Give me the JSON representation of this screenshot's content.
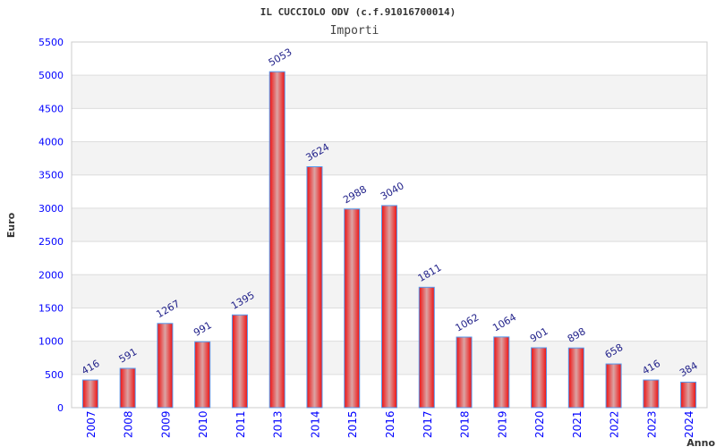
{
  "chart_data": {
    "type": "bar",
    "title": "IL CUCCIOLO ODV (c.f.91016700014)",
    "subtitle": "Importi",
    "xlabel": "Anno",
    "ylabel": "Euro",
    "ylim": [
      0,
      5500
    ],
    "yticks": [
      0,
      500,
      1000,
      1500,
      2000,
      2500,
      3000,
      3500,
      4000,
      4500,
      5000,
      5500
    ],
    "categories": [
      "2007",
      "2008",
      "2009",
      "2010",
      "2011",
      "2013",
      "2014",
      "2015",
      "2016",
      "2017",
      "2018",
      "2019",
      "2020",
      "2021",
      "2022",
      "2023",
      "2024"
    ],
    "values": [
      416,
      591,
      1267,
      991,
      1395,
      5053,
      3624,
      2988,
      3040,
      1811,
      1062,
      1064,
      901,
      898,
      658,
      416,
      384
    ],
    "grid": true,
    "colors": {
      "bar": "#ee2222",
      "bar_highlight": "#d9a0a0",
      "bar_border": "#5599ee",
      "band": "#f3f3f3",
      "grid": "#dddddd"
    }
  }
}
